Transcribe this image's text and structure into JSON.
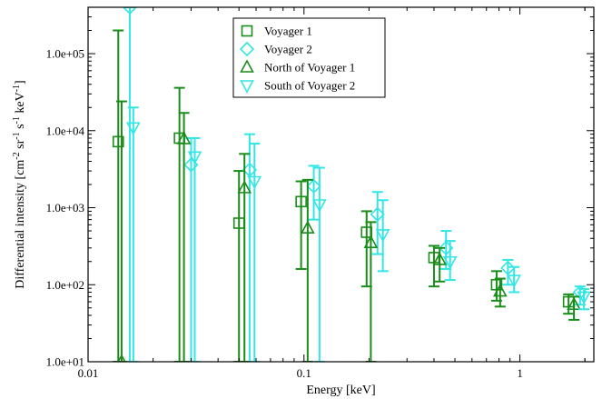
{
  "chart_data": {
    "type": "scatter",
    "xscale": "log",
    "yscale": "log",
    "xlim": [
      0.01,
      2.2
    ],
    "ylim": [
      10,
      400000
    ],
    "xlabel": "Energy [keV]",
    "ylabel_parts": [
      "Differential intensity [cm",
      "-2",
      " sr",
      "-1",
      " s",
      "-1",
      " keV",
      "-1",
      "]"
    ],
    "x_ticks": [
      {
        "value": 0.01,
        "label": "0.01"
      },
      {
        "value": 0.1,
        "label": "0.1"
      },
      {
        "value": 1,
        "label": "1"
      }
    ],
    "y_ticks": [
      {
        "value": 10,
        "label": "1.0e+01"
      },
      {
        "value": 100,
        "label": "1.0e+02"
      },
      {
        "value": 1000,
        "label": "1.0e+03"
      },
      {
        "value": 10000,
        "label": "1.0e+04"
      },
      {
        "value": 100000,
        "label": "1.0e+05"
      }
    ],
    "legend_position": "top-center",
    "series": [
      {
        "name": "Voyager 1",
        "marker": "square",
        "color": "#1a8c1a",
        "points": [
          {
            "x": 0.0138,
            "y": 7200,
            "ylo": 10,
            "yhi": 200000
          },
          {
            "x": 0.0265,
            "y": 8000,
            "ylo": 10,
            "yhi": 36000
          },
          {
            "x": 0.05,
            "y": 630,
            "ylo": 10,
            "yhi": 3000
          },
          {
            "x": 0.097,
            "y": 1200,
            "ylo": 160,
            "yhi": 2200
          },
          {
            "x": 0.195,
            "y": 480,
            "ylo": 95,
            "yhi": 900
          },
          {
            "x": 0.4,
            "y": 225,
            "ylo": 95,
            "yhi": 320
          },
          {
            "x": 0.78,
            "y": 100,
            "ylo": 62,
            "yhi": 150
          },
          {
            "x": 1.68,
            "y": 60,
            "ylo": 42,
            "yhi": 75
          }
        ]
      },
      {
        "name": "Voyager 2",
        "marker": "diamond",
        "color": "#33e6e6",
        "points": [
          {
            "x": 0.0156,
            "y": 400000,
            "ylo": 10,
            "yhi": 400000
          },
          {
            "x": 0.03,
            "y": 3600,
            "ylo": 10,
            "yhi": 8000
          },
          {
            "x": 0.056,
            "y": 3100,
            "ylo": 10,
            "yhi": 9000
          },
          {
            "x": 0.111,
            "y": 1900,
            "ylo": 700,
            "yhi": 3500
          },
          {
            "x": 0.219,
            "y": 820,
            "ylo": 250,
            "yhi": 1600
          },
          {
            "x": 0.455,
            "y": 300,
            "ylo": 160,
            "yhi": 500
          },
          {
            "x": 0.88,
            "y": 165,
            "ylo": 100,
            "yhi": 210
          },
          {
            "x": 1.9,
            "y": 80,
            "ylo": 55,
            "yhi": 95
          }
        ]
      },
      {
        "name": "North of Voyager 1",
        "marker": "triangle-up",
        "color": "#1a8c1a",
        "points": [
          {
            "x": 0.0143,
            "y": 10,
            "ylo": 10,
            "yhi": 24000
          },
          {
            "x": 0.0278,
            "y": 7800,
            "ylo": 10,
            "yhi": 17000
          },
          {
            "x": 0.053,
            "y": 1800,
            "ylo": 10,
            "yhi": 5000
          },
          {
            "x": 0.104,
            "y": 540,
            "ylo": 10,
            "yhi": 2300
          },
          {
            "x": 0.204,
            "y": 350,
            "ylo": 10,
            "yhi": 650
          },
          {
            "x": 0.425,
            "y": 210,
            "ylo": 110,
            "yhi": 300
          },
          {
            "x": 0.81,
            "y": 82,
            "ylo": 52,
            "yhi": 120
          },
          {
            "x": 1.78,
            "y": 55,
            "ylo": 35,
            "yhi": 70
          }
        ]
      },
      {
        "name": "South of Voyager 2",
        "marker": "triangle-down",
        "color": "#33e6e6",
        "points": [
          {
            "x": 0.0162,
            "y": 11000,
            "ylo": 10,
            "yhi": 20000
          },
          {
            "x": 0.0312,
            "y": 4600,
            "ylo": 10,
            "yhi": 8000
          },
          {
            "x": 0.059,
            "y": 2200,
            "ylo": 10,
            "yhi": 6800
          },
          {
            "x": 0.118,
            "y": 1100,
            "ylo": 10,
            "yhi": 3300
          },
          {
            "x": 0.232,
            "y": 450,
            "ylo": 150,
            "yhi": 1250
          },
          {
            "x": 0.475,
            "y": 200,
            "ylo": 115,
            "yhi": 370
          },
          {
            "x": 0.94,
            "y": 115,
            "ylo": 80,
            "yhi": 170
          },
          {
            "x": 1.98,
            "y": 70,
            "ylo": 48,
            "yhi": 88
          }
        ]
      }
    ]
  }
}
